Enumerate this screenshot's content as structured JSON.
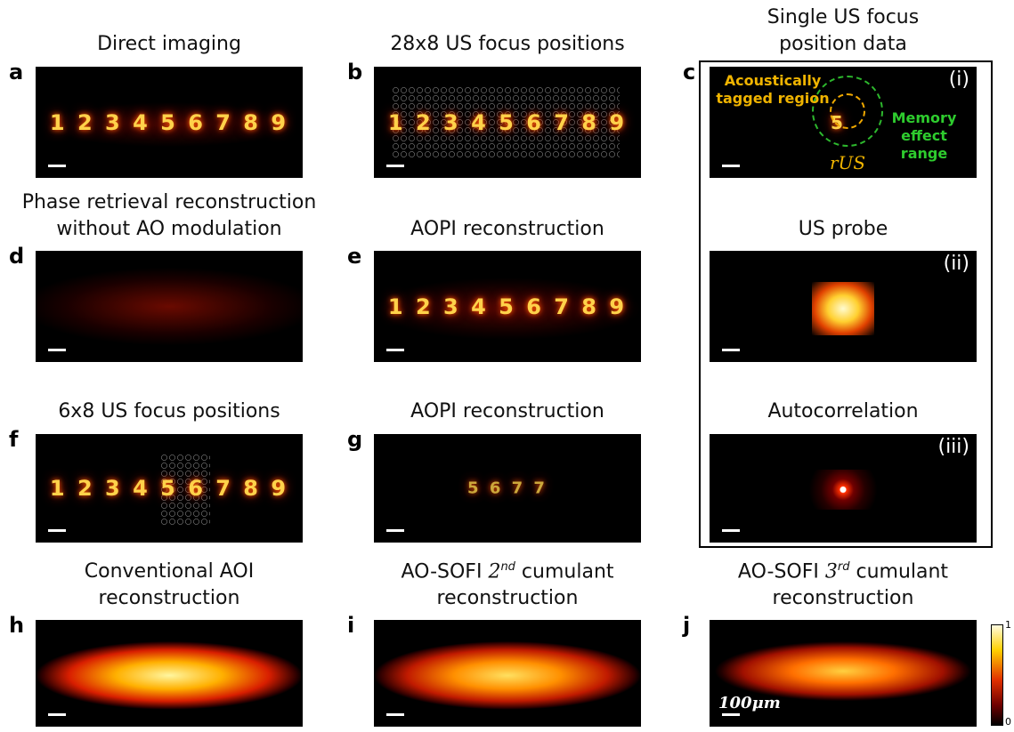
{
  "panels": [
    {
      "label": "a",
      "title": [
        "Direct imaging"
      ],
      "digits": "1 2 3 4 5 6 7 8 9"
    },
    {
      "label": "b",
      "title": [
        "28x8 US focus positions"
      ],
      "digits": "1 2 3 4 5 6 7 8 9"
    },
    {
      "label": "c",
      "title": [
        "Single US focus",
        "position data"
      ],
      "tag": "(i)",
      "digits": "5",
      "annotations": [
        "Acoustically tagged region",
        "Memory effect range",
        "rUS"
      ]
    },
    {
      "label": "d",
      "title": [
        "Phase retrieval reconstruction",
        "without AO modulation"
      ]
    },
    {
      "label": "e",
      "title": [
        "AOPI reconstruction"
      ],
      "digits": "1 2 3 4 5 6 7 8 9"
    },
    {
      "label": "",
      "title": [
        "US probe"
      ],
      "tag": "(ii)"
    },
    {
      "label": "f",
      "title": [
        "6x8 US focus positions"
      ],
      "digits": "1 2 3 4 5 6 7 8 9"
    },
    {
      "label": "g",
      "title": [
        "AOPI reconstruction"
      ],
      "digits": "5 6 7 7"
    },
    {
      "label": "",
      "title": [
        "Autocorrelation"
      ],
      "tag": "(iii)"
    },
    {
      "label": "h",
      "title": [
        "Conventional AOI",
        "reconstruction"
      ]
    },
    {
      "label": "i",
      "title": [
        {
          "pre": "AO-SOFI ",
          "base": "2",
          "sup": "nd",
          "post": " cumulant"
        },
        "reconstruction"
      ]
    },
    {
      "label": "j",
      "title": [
        {
          "pre": "AO-SOFI ",
          "base": "3",
          "sup": "rd",
          "post": " cumulant"
        },
        "reconstruction"
      ],
      "scale_label": "100μm"
    }
  ],
  "colorbar": {
    "max_label": "1",
    "min_label": "0"
  }
}
